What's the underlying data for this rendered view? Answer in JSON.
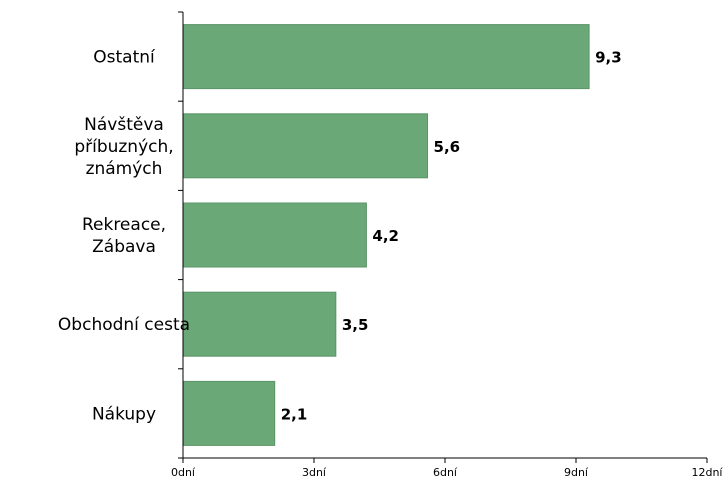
{
  "chart_data": {
    "type": "bar",
    "orientation": "horizontal",
    "categories": [
      [
        "Ostatní"
      ],
      [
        "Návštěva",
        "příbuzných,",
        "známých"
      ],
      [
        "Rekreace,",
        "Zábava"
      ],
      [
        "Obchodní cesta"
      ],
      [
        "Nákupy"
      ]
    ],
    "values": [
      9.3,
      5.6,
      4.2,
      3.5,
      2.1
    ],
    "value_labels": [
      "9,3",
      "5,6",
      "4,2",
      "3,5",
      "2,1"
    ],
    "xlim": [
      0,
      12
    ],
    "ticks": [
      0,
      3,
      6,
      9,
      12
    ],
    "tick_labels": [
      "0dní",
      "3dní",
      "6dní",
      "9dní",
      "12dní"
    ],
    "title": "",
    "xlabel": "",
    "ylabel": "",
    "grid": false,
    "legend": "none",
    "bar_color": "#6aa877",
    "bar_edge_color": "#5b9468"
  }
}
